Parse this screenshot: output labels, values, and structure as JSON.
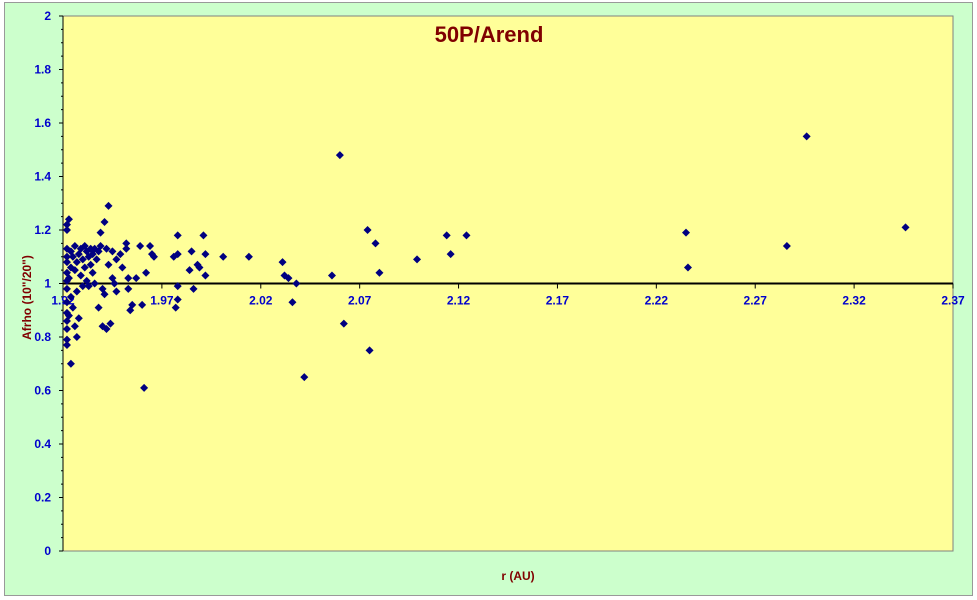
{
  "colors": {
    "chart_area": "#ccffcc",
    "plot_area": "#ffff99",
    "title": "#800000",
    "axis_title": "#800000",
    "tick_label": "#0000cc",
    "marker": "#000080",
    "axis_line": "#000000"
  },
  "chart_data": {
    "type": "scatter",
    "title": "50P/Arend",
    "xlabel": "r (AU)",
    "ylabel": "Afrho (10\"/20\")",
    "xlim": [
      1.92,
      2.37
    ],
    "ylim": [
      0,
      2
    ],
    "x_tick_labels": [
      "1.92",
      "1.97",
      "2.02",
      "2.07",
      "2.12",
      "2.17",
      "2.22",
      "2.27",
      "2.32",
      "2.37"
    ],
    "y_tick_labels": [
      "0",
      "0.2",
      "0.4",
      "0.6",
      "0.8",
      "1",
      "1.2",
      "1.4",
      "1.6",
      "1.8",
      "2"
    ],
    "x_axis_crosses_at": 1,
    "grid": false,
    "marker": "diamond",
    "series": [
      {
        "points": [
          [
            1.922,
            1.22
          ],
          [
            1.922,
            1.2
          ],
          [
            1.922,
            1.13
          ],
          [
            1.922,
            1.1
          ],
          [
            1.922,
            1.08
          ],
          [
            1.922,
            1.04
          ],
          [
            1.922,
            1.01
          ],
          [
            1.922,
            0.98
          ],
          [
            1.922,
            0.93
          ],
          [
            1.922,
            0.89
          ],
          [
            1.922,
            0.86
          ],
          [
            1.922,
            0.83
          ],
          [
            1.922,
            0.79
          ],
          [
            1.922,
            0.77
          ],
          [
            1.923,
            1.24
          ],
          [
            1.923,
            1.02
          ],
          [
            1.923,
            0.88
          ],
          [
            1.924,
            1.12
          ],
          [
            1.924,
            1.06
          ],
          [
            1.924,
            0.95
          ],
          [
            1.924,
            0.7
          ],
          [
            1.925,
            1.1
          ],
          [
            1.925,
            0.91
          ],
          [
            1.926,
            1.14
          ],
          [
            1.926,
            1.05
          ],
          [
            1.926,
            0.84
          ],
          [
            1.927,
            1.08
          ],
          [
            1.927,
            0.97
          ],
          [
            1.927,
            0.8
          ],
          [
            1.928,
            1.11
          ],
          [
            1.928,
            0.87
          ],
          [
            1.929,
            1.13
          ],
          [
            1.929,
            1.03
          ],
          [
            1.93,
            1.09
          ],
          [
            1.93,
            0.99
          ],
          [
            1.931,
            1.14
          ],
          [
            1.931,
            1.06
          ],
          [
            1.932,
            1.12
          ],
          [
            1.932,
            1.01
          ],
          [
            1.933,
            1.1
          ],
          [
            1.933,
            0.99
          ],
          [
            1.934,
            1.13
          ],
          [
            1.934,
            1.07
          ],
          [
            1.935,
            1.11
          ],
          [
            1.935,
            1.04
          ],
          [
            1.936,
            1.13
          ],
          [
            1.936,
            1.0
          ],
          [
            1.937,
            1.09
          ],
          [
            1.938,
            1.12
          ],
          [
            1.938,
            0.91
          ],
          [
            1.939,
            1.14
          ],
          [
            1.939,
            1.19
          ],
          [
            1.94,
            0.98
          ],
          [
            1.94,
            0.84
          ],
          [
            1.941,
            1.23
          ],
          [
            1.941,
            0.96
          ],
          [
            1.942,
            1.13
          ],
          [
            1.942,
            0.83
          ],
          [
            1.943,
            1.29
          ],
          [
            1.943,
            1.07
          ],
          [
            1.944,
            0.85
          ],
          [
            1.945,
            1.12
          ],
          [
            1.945,
            1.02
          ],
          [
            1.946,
            1.0
          ],
          [
            1.947,
            0.97
          ],
          [
            1.947,
            1.09
          ],
          [
            1.949,
            1.11
          ],
          [
            1.95,
            1.06
          ],
          [
            1.952,
            1.15
          ],
          [
            1.952,
            1.13
          ],
          [
            1.953,
            1.02
          ],
          [
            1.953,
            0.98
          ],
          [
            1.954,
            0.9
          ],
          [
            1.955,
            0.92
          ],
          [
            1.957,
            1.02
          ],
          [
            1.959,
            1.14
          ],
          [
            1.96,
            0.92
          ],
          [
            1.961,
            0.61
          ],
          [
            1.962,
            1.04
          ],
          [
            1.964,
            1.14
          ],
          [
            1.965,
            1.11
          ],
          [
            1.966,
            1.1
          ],
          [
            1.976,
            1.1
          ],
          [
            1.977,
            0.91
          ],
          [
            1.978,
            1.18
          ],
          [
            1.978,
            1.11
          ],
          [
            1.978,
            0.99
          ],
          [
            1.978,
            0.94
          ],
          [
            1.984,
            1.05
          ],
          [
            1.985,
            1.12
          ],
          [
            1.986,
            0.98
          ],
          [
            1.988,
            1.07
          ],
          [
            1.989,
            1.06
          ],
          [
            1.991,
            1.18
          ],
          [
            1.992,
            1.11
          ],
          [
            1.992,
            1.03
          ],
          [
            2.001,
            1.1
          ],
          [
            2.014,
            1.1
          ],
          [
            2.031,
            1.08
          ],
          [
            2.032,
            1.03
          ],
          [
            2.034,
            1.02
          ],
          [
            2.036,
            0.93
          ],
          [
            2.038,
            1.0
          ],
          [
            2.042,
            0.65
          ],
          [
            2.056,
            1.03
          ],
          [
            2.06,
            1.48
          ],
          [
            2.062,
            0.85
          ],
          [
            2.074,
            1.2
          ],
          [
            2.075,
            0.75
          ],
          [
            2.078,
            1.15
          ],
          [
            2.08,
            1.04
          ],
          [
            2.099,
            1.09
          ],
          [
            2.114,
            1.18
          ],
          [
            2.116,
            1.11
          ],
          [
            2.124,
            1.18
          ],
          [
            2.235,
            1.19
          ],
          [
            2.236,
            1.06
          ],
          [
            2.286,
            1.14
          ],
          [
            2.296,
            1.55
          ],
          [
            2.346,
            1.21
          ]
        ]
      }
    ]
  }
}
